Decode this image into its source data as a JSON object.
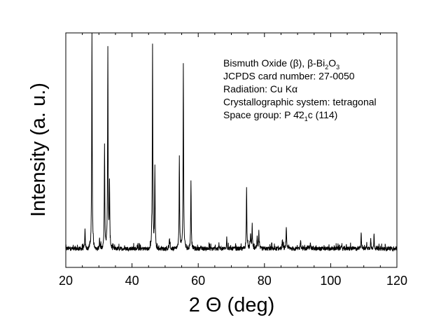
{
  "chart_data": {
    "type": "line",
    "xlabel": "2 Θ (deg)",
    "ylabel": "Intensity (a. u.)",
    "xlim": [
      20,
      120
    ],
    "xticks": [
      "20",
      "40",
      "60",
      "80",
      "100",
      "120"
    ],
    "yticks_shown": false,
    "grid": false,
    "legend": "none",
    "annotation_lines": [
      {
        "parts": [
          {
            "t": "Bismuth Oxide (β), β-Bi"
          },
          {
            "t": "2",
            "sub": true
          },
          {
            "t": "O"
          },
          {
            "t": "3",
            "sub": true
          }
        ]
      },
      {
        "parts": [
          {
            "t": "JCPDS card number: 27-0050"
          }
        ]
      },
      {
        "parts": [
          {
            "t": "Radiation: Cu Kα"
          }
        ]
      },
      {
        "parts": [
          {
            "t": "Crystallographic system: tetragonal"
          }
        ]
      },
      {
        "parts": [
          {
            "t": "Space group: P "
          },
          {
            "t": "4̄",
            "bar": true
          },
          {
            "t": "2"
          },
          {
            "t": "1",
            "sub": true
          },
          {
            "t": "c (114)"
          }
        ]
      }
    ],
    "baseline": 8,
    "noise_amplitude": 1.5,
    "ylim": [
      0,
      100
    ],
    "peaks": [
      {
        "x": 25.8,
        "y": 16
      },
      {
        "x": 27.9,
        "y": 100
      },
      {
        "x": 30.2,
        "y": 12
      },
      {
        "x": 31.7,
        "y": 52
      },
      {
        "x": 32.7,
        "y": 94
      },
      {
        "x": 33.2,
        "y": 35
      },
      {
        "x": 41.6,
        "y": 9
      },
      {
        "x": 45.9,
        "y": 9
      },
      {
        "x": 46.2,
        "y": 95
      },
      {
        "x": 46.9,
        "y": 43
      },
      {
        "x": 51.3,
        "y": 12
      },
      {
        "x": 54.3,
        "y": 48
      },
      {
        "x": 55.5,
        "y": 88
      },
      {
        "x": 57.8,
        "y": 37
      },
      {
        "x": 66.3,
        "y": 9
      },
      {
        "x": 68.6,
        "y": 13
      },
      {
        "x": 74.6,
        "y": 35
      },
      {
        "x": 75.8,
        "y": 15
      },
      {
        "x": 76.3,
        "y": 18
      },
      {
        "x": 77.8,
        "y": 13
      },
      {
        "x": 78.3,
        "y": 15
      },
      {
        "x": 85.4,
        "y": 12
      },
      {
        "x": 86.6,
        "y": 17
      },
      {
        "x": 90.9,
        "y": 12
      },
      {
        "x": 93.2,
        "y": 9
      },
      {
        "x": 93.9,
        "y": 11
      },
      {
        "x": 103.1,
        "y": 9
      },
      {
        "x": 109.2,
        "y": 15
      },
      {
        "x": 110.9,
        "y": 10
      },
      {
        "x": 112.1,
        "y": 12
      },
      {
        "x": 113.1,
        "y": 14
      }
    ]
  }
}
